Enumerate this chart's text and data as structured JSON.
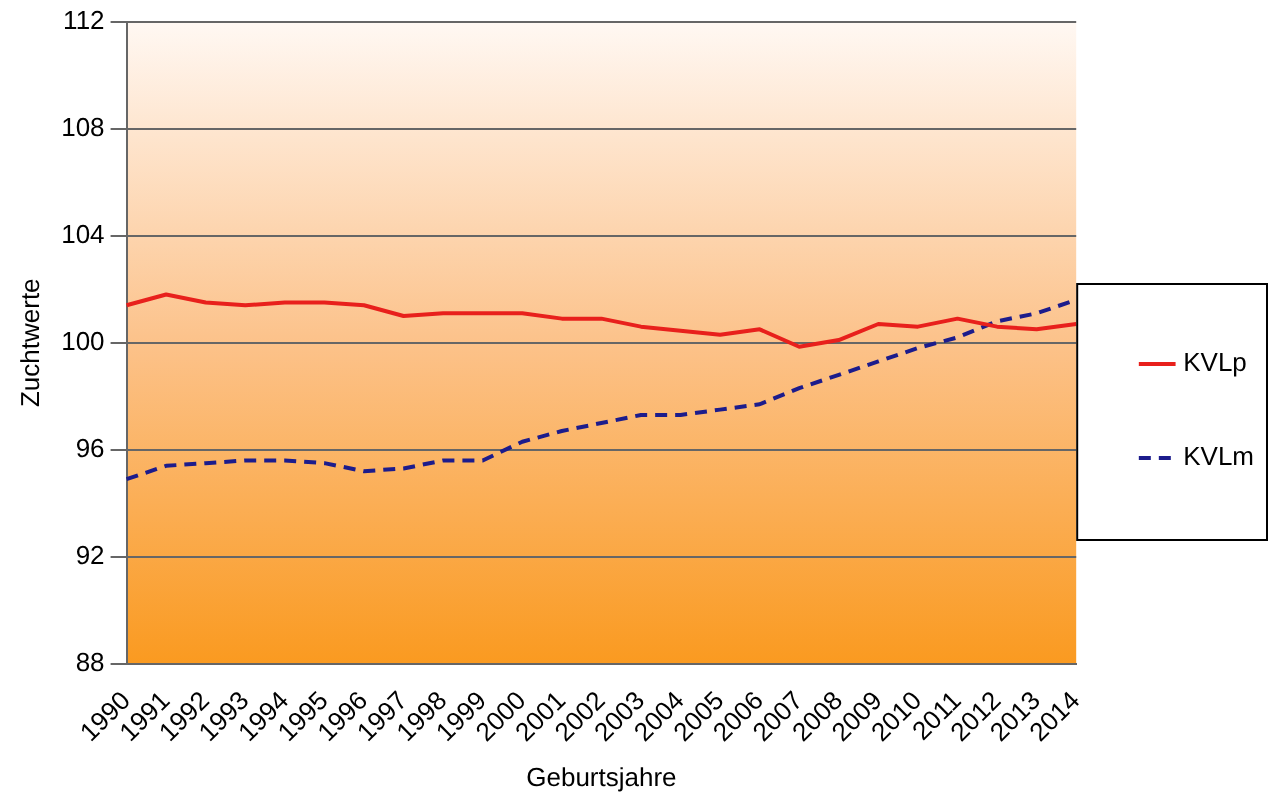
{
  "chart_data": {
    "type": "line",
    "xlabel": "Geburtsjahre",
    "ylabel": "Zuchtwerte",
    "categories": [
      "1990",
      "1991",
      "1992",
      "1993",
      "1994",
      "1995",
      "1996",
      "1997",
      "1998",
      "1999",
      "2000",
      "2001",
      "2002",
      "2003",
      "2004",
      "2005",
      "2006",
      "2007",
      "2008",
      "2009",
      "2010",
      "2011",
      "2012",
      "2013",
      "2014"
    ],
    "series": [
      {
        "name": "KVLp",
        "color": "#e8201c",
        "line_style": "solid",
        "values": [
          101.4,
          101.8,
          101.5,
          101.4,
          101.5,
          101.5,
          101.4,
          101.0,
          101.1,
          101.1,
          101.1,
          100.9,
          100.9,
          100.6,
          100.45,
          100.3,
          100.5,
          99.85,
          100.1,
          100.7,
          100.6,
          100.9,
          100.6,
          100.5,
          100.7
        ]
      },
      {
        "name": "KVLm",
        "color": "#1c1c8c",
        "line_style": "dashed",
        "values": [
          94.9,
          95.4,
          95.5,
          95.6,
          95.6,
          95.5,
          95.2,
          95.3,
          95.6,
          95.6,
          96.3,
          96.7,
          97.0,
          97.3,
          97.3,
          97.5,
          97.7,
          98.3,
          98.8,
          99.3,
          99.8,
          100.2,
          100.8,
          101.1,
          101.6
        ]
      }
    ],
    "ylim": [
      88,
      112
    ],
    "yticks": [
      88,
      92,
      96,
      100,
      104,
      108,
      112
    ],
    "grid": "y",
    "legend": "right",
    "marker": "none"
  }
}
